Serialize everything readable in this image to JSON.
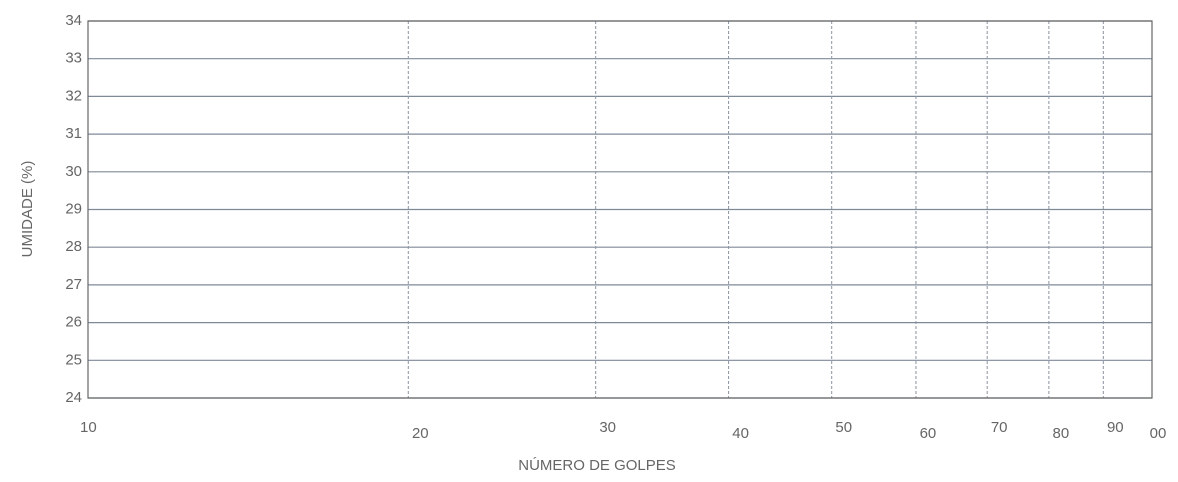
{
  "chart_data": {
    "type": "scatter",
    "x_label": "NÚMERO   DE   GOLPES",
    "y_label": "UMIDADE (%)",
    "xlim": [
      10,
      100
    ],
    "xlog": true,
    "xticks": [
      10,
      20,
      30,
      40,
      50,
      60,
      70,
      80,
      90,
      {
        "value": 100,
        "label": "00"
      }
    ],
    "ylim": [
      24,
      34
    ],
    "yticks": [
      24,
      25,
      26,
      27,
      28,
      29,
      30,
      31,
      32,
      33,
      34
    ],
    "grid": true,
    "series": []
  }
}
